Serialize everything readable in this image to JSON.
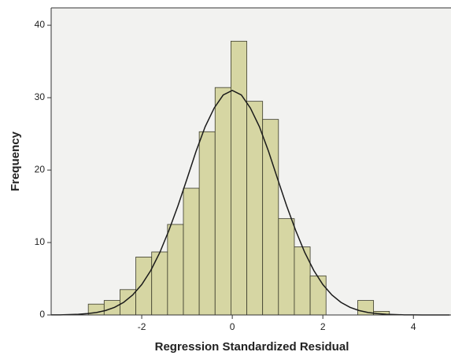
{
  "chart_data": {
    "type": "histogram",
    "x_label": "Regression Standardized Residual",
    "y_label": "Frequency",
    "bins": [
      -3.18,
      -2.83,
      -2.48,
      -2.13,
      -1.78,
      -1.43,
      -1.08,
      -0.73,
      -0.38,
      -0.03,
      0.32,
      0.67,
      1.02,
      1.37,
      1.72,
      2.07,
      2.42,
      2.77,
      3.12,
      3.47
    ],
    "values": [
      1.5,
      2,
      3.5,
      8,
      8.7,
      12.5,
      17.5,
      25.3,
      31.4,
      37.8,
      29.5,
      27,
      13.3,
      9.4,
      5.4,
      0,
      0,
      2,
      0.5
    ],
    "color": "#d6d6a3",
    "edge_color": "#3a3a2a",
    "curve": {
      "x": [
        -4,
        -3.8,
        -3.6,
        -3.4,
        -3.2,
        -3,
        -2.8,
        -2.6,
        -2.4,
        -2.2,
        -2,
        -1.8,
        -1.6,
        -1.4,
        -1.2,
        -1,
        -0.8,
        -0.6,
        -0.4,
        -0.2,
        0,
        0.2,
        0.4,
        0.6,
        0.8,
        1,
        1.2,
        1.4,
        1.6,
        1.8,
        2,
        2.2,
        2.4,
        2.6,
        2.8,
        3,
        3.2,
        3.4,
        3.6,
        3.8,
        4,
        4.2,
        4.4,
        4.6,
        4.8
      ],
      "y": [
        0.01,
        0.02,
        0.05,
        0.1,
        0.19,
        0.34,
        0.61,
        1.05,
        1.74,
        2.76,
        4.2,
        6.14,
        8.63,
        11.67,
        15.07,
        18.8,
        22.6,
        25.98,
        28.57,
        30.38,
        31,
        30.38,
        28.57,
        25.98,
        22.6,
        18.8,
        15.07,
        11.67,
        8.63,
        6.14,
        4.2,
        2.76,
        1.74,
        1.05,
        0.61,
        0.34,
        0.19,
        0.1,
        0.05,
        0.02,
        0.01,
        0,
        0,
        0,
        0
      ],
      "color": "#1a1a1a"
    },
    "xlim": [
      -4,
      4.83
    ],
    "ylim": [
      0,
      42.4
    ],
    "xticks": [
      -2,
      0,
      2,
      4
    ],
    "yticks": [
      0,
      10,
      20,
      30,
      40
    ]
  }
}
